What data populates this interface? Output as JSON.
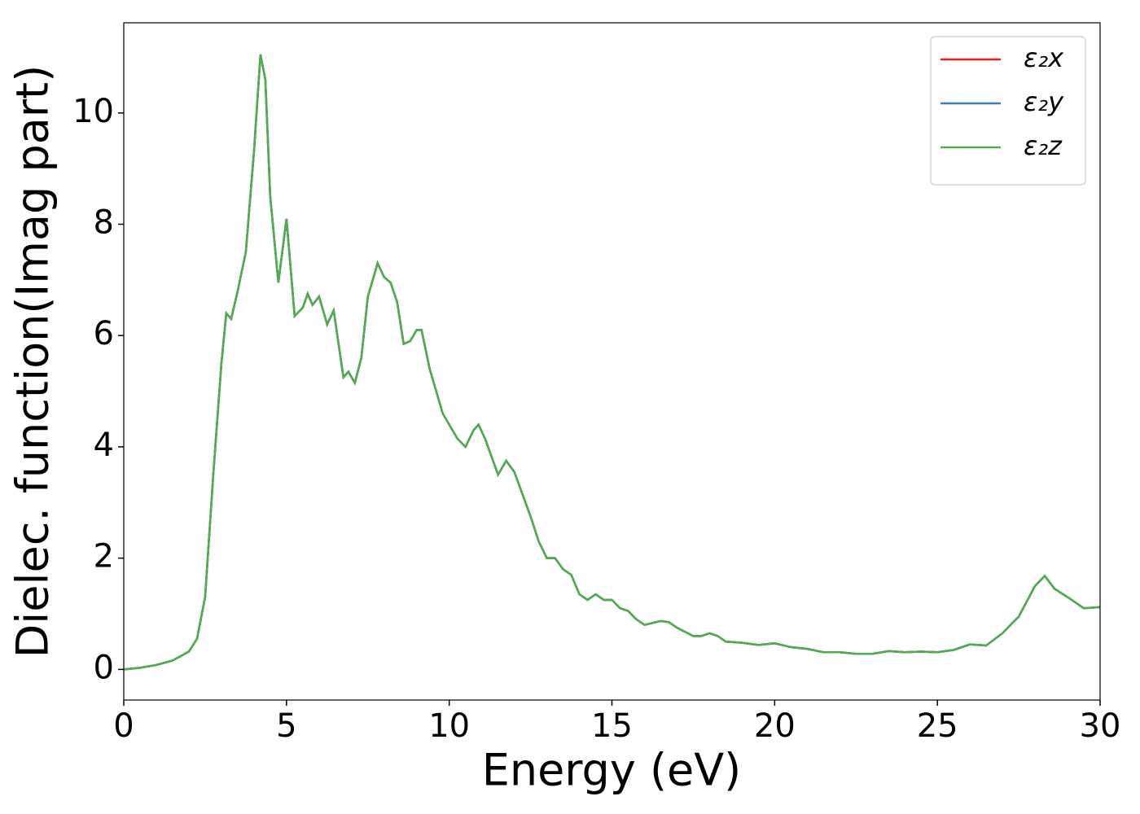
{
  "chart_data": {
    "type": "line",
    "xlabel": "Energy (eV)",
    "ylabel": "Dielec. function(Imag part)",
    "x": [
      0,
      0.5,
      1,
      1.5,
      2,
      2.25,
      2.5,
      2.75,
      3.0,
      3.15,
      3.3,
      3.5,
      3.75,
      4.0,
      4.2,
      4.35,
      4.5,
      4.75,
      5.0,
      5.25,
      5.5,
      5.65,
      5.8,
      6.0,
      6.25,
      6.45,
      6.75,
      6.9,
      7.1,
      7.3,
      7.5,
      7.8,
      8.0,
      8.2,
      8.4,
      8.6,
      8.8,
      9.0,
      9.15,
      9.4,
      9.6,
      9.8,
      10.0,
      10.25,
      10.5,
      10.75,
      10.9,
      11.1,
      11.5,
      11.75,
      12.0,
      12.25,
      12.5,
      12.75,
      13.0,
      13.25,
      13.5,
      13.75,
      14.0,
      14.25,
      14.5,
      14.75,
      15.0,
      15.25,
      15.5,
      15.75,
      16.0,
      16.5,
      16.75,
      17.0,
      17.5,
      17.75,
      18.0,
      18.25,
      18.5,
      19.0,
      19.5,
      20.0,
      20.5,
      21.0,
      21.5,
      22.0,
      22.5,
      23.0,
      23.5,
      24.0,
      24.5,
      25.0,
      25.5,
      26.0,
      26.5,
      27.0,
      27.5,
      28.0,
      28.3,
      28.6,
      29.0,
      29.5,
      30.0
    ],
    "series": [
      {
        "name": "ε₂x",
        "color": "#e41a1c",
        "values": [
          0.0,
          0.03,
          0.08,
          0.16,
          0.32,
          0.55,
          1.3,
          3.5,
          5.5,
          6.4,
          6.3,
          6.8,
          7.5,
          9.3,
          11.05,
          10.6,
          8.5,
          6.95,
          8.1,
          6.35,
          6.5,
          6.75,
          6.55,
          6.7,
          6.2,
          6.45,
          5.25,
          5.35,
          5.15,
          5.6,
          6.7,
          7.3,
          7.05,
          6.95,
          6.6,
          5.85,
          5.9,
          6.1,
          6.1,
          5.4,
          5.0,
          4.6,
          4.4,
          4.15,
          4.0,
          4.3,
          4.4,
          4.15,
          3.5,
          3.75,
          3.55,
          3.15,
          2.75,
          2.3,
          2.0,
          2.0,
          1.8,
          1.7,
          1.35,
          1.25,
          1.35,
          1.25,
          1.25,
          1.1,
          1.05,
          0.9,
          0.8,
          0.87,
          0.85,
          0.75,
          0.6,
          0.6,
          0.65,
          0.6,
          0.5,
          0.48,
          0.44,
          0.47,
          0.4,
          0.37,
          0.31,
          0.31,
          0.28,
          0.28,
          0.33,
          0.31,
          0.32,
          0.31,
          0.35,
          0.45,
          0.43,
          0.65,
          0.95,
          1.5,
          1.68,
          1.45,
          1.3,
          1.1,
          1.12
        ]
      },
      {
        "name": "ε₂y",
        "color": "#377eb8",
        "values": [
          0.0,
          0.03,
          0.08,
          0.16,
          0.32,
          0.55,
          1.3,
          3.5,
          5.5,
          6.4,
          6.3,
          6.8,
          7.5,
          9.3,
          11.05,
          10.6,
          8.5,
          6.95,
          8.1,
          6.35,
          6.5,
          6.75,
          6.55,
          6.7,
          6.2,
          6.45,
          5.25,
          5.35,
          5.15,
          5.6,
          6.7,
          7.3,
          7.05,
          6.95,
          6.6,
          5.85,
          5.9,
          6.1,
          6.1,
          5.4,
          5.0,
          4.6,
          4.4,
          4.15,
          4.0,
          4.3,
          4.4,
          4.15,
          3.5,
          3.75,
          3.55,
          3.15,
          2.75,
          2.3,
          2.0,
          2.0,
          1.8,
          1.7,
          1.35,
          1.25,
          1.35,
          1.25,
          1.25,
          1.1,
          1.05,
          0.9,
          0.8,
          0.87,
          0.85,
          0.75,
          0.6,
          0.6,
          0.65,
          0.6,
          0.5,
          0.48,
          0.44,
          0.47,
          0.4,
          0.37,
          0.31,
          0.31,
          0.28,
          0.28,
          0.33,
          0.31,
          0.32,
          0.31,
          0.35,
          0.45,
          0.43,
          0.65,
          0.95,
          1.5,
          1.68,
          1.45,
          1.3,
          1.1,
          1.12
        ]
      },
      {
        "name": "ε₂z",
        "color": "#4daf4a",
        "values": [
          0.0,
          0.03,
          0.08,
          0.16,
          0.32,
          0.55,
          1.3,
          3.5,
          5.5,
          6.4,
          6.3,
          6.8,
          7.5,
          9.3,
          11.05,
          10.6,
          8.5,
          6.95,
          8.1,
          6.35,
          6.5,
          6.75,
          6.55,
          6.7,
          6.2,
          6.45,
          5.25,
          5.35,
          5.15,
          5.6,
          6.7,
          7.3,
          7.05,
          6.95,
          6.6,
          5.85,
          5.9,
          6.1,
          6.1,
          5.4,
          5.0,
          4.6,
          4.4,
          4.15,
          4.0,
          4.3,
          4.4,
          4.15,
          3.5,
          3.75,
          3.55,
          3.15,
          2.75,
          2.3,
          2.0,
          2.0,
          1.8,
          1.7,
          1.35,
          1.25,
          1.35,
          1.25,
          1.25,
          1.1,
          1.05,
          0.9,
          0.8,
          0.87,
          0.85,
          0.75,
          0.6,
          0.6,
          0.65,
          0.6,
          0.5,
          0.48,
          0.44,
          0.47,
          0.4,
          0.37,
          0.31,
          0.31,
          0.28,
          0.28,
          0.33,
          0.31,
          0.32,
          0.31,
          0.35,
          0.45,
          0.43,
          0.65,
          0.95,
          1.5,
          1.68,
          1.45,
          1.3,
          1.1,
          1.12
        ]
      }
    ],
    "xlim": [
      0,
      30
    ],
    "xticks": [
      0,
      5,
      10,
      15,
      20,
      25,
      30
    ],
    "ylim": [
      -0.55,
      11.62
    ],
    "yticks": [
      0,
      2,
      4,
      6,
      8,
      10
    ],
    "grid": false,
    "legend": "upper right"
  }
}
